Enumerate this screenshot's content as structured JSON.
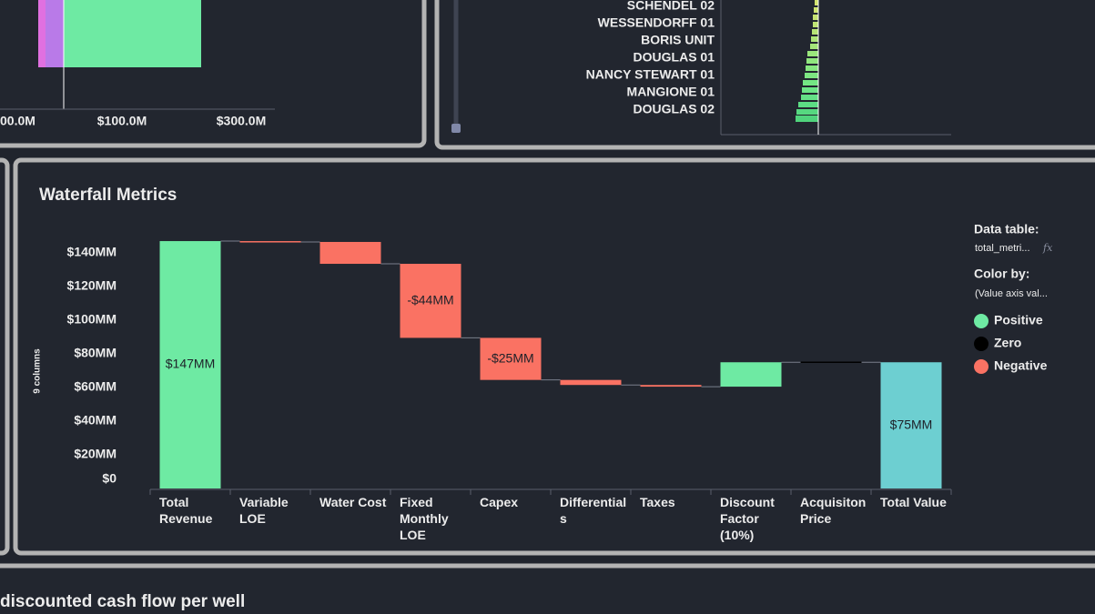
{
  "top_left_panel": {
    "x_tick_labels": [
      "00.0M",
      "$100.0M",
      "$300.0M"
    ]
  },
  "top_right_panel": {
    "well_names": [
      "SCHENDEL 02",
      "WESSENDORFF 01",
      "BORIS UNIT",
      "DOUGLAS 01",
      "NANCY STEWART 01",
      "MANGIONE 01",
      "DOUGLAS 02"
    ]
  },
  "chart_data": {
    "type": "waterfall",
    "title": "Waterfall Metrics",
    "y_axis_label": "9 columns",
    "categories": [
      "Total Revenue",
      "Variable LOE",
      "Water Cost",
      "Fixed Monthly LOE",
      "Capex",
      "Differentials",
      "Taxes",
      "Discount Factor (10%)",
      "Acquisiton Price",
      "Total Value"
    ],
    "values": [
      147,
      -0.5,
      -13,
      -44,
      -25,
      -3,
      -1,
      14.5,
      0,
      75
    ],
    "value_labels": [
      "$147MM",
      null,
      null,
      "-$44MM",
      "-$25MM",
      null,
      null,
      null,
      null,
      "$75MM"
    ],
    "colors": [
      "#6eeaa3",
      "#fa7263",
      "#fa7263",
      "#fa7263",
      "#fa7263",
      "#fa7263",
      "#fa7263",
      "#6eeaa3",
      "#000000",
      "#6dcfd1"
    ],
    "total_indices": [
      0,
      9
    ],
    "ylim": [
      0,
      150
    ],
    "yticks": [
      {
        "value": 0,
        "label": "$0"
      },
      {
        "value": 20,
        "label": "$20MM"
      },
      {
        "value": 40,
        "label": "$40MM"
      },
      {
        "value": 60,
        "label": "$60MM"
      },
      {
        "value": 80,
        "label": "$80MM"
      },
      {
        "value": 100,
        "label": "$100MM"
      },
      {
        "value": 120,
        "label": "$120MM"
      },
      {
        "value": 140,
        "label": "$140MM"
      }
    ],
    "grid": false,
    "legend": {
      "data_table_label": "Data table:",
      "data_table": "total_metri...",
      "fx": "fx",
      "color_by_label": "Color by:",
      "color_by": "(Value axis val...",
      "entries": [
        {
          "name": "Positive",
          "color": "#6eeaa3"
        },
        {
          "name": "Zero",
          "color": "#000000"
        },
        {
          "name": "Negative",
          "color": "#fa7263"
        }
      ]
    }
  },
  "bottom_panel": {
    "title": "discounted cash flow per well"
  }
}
